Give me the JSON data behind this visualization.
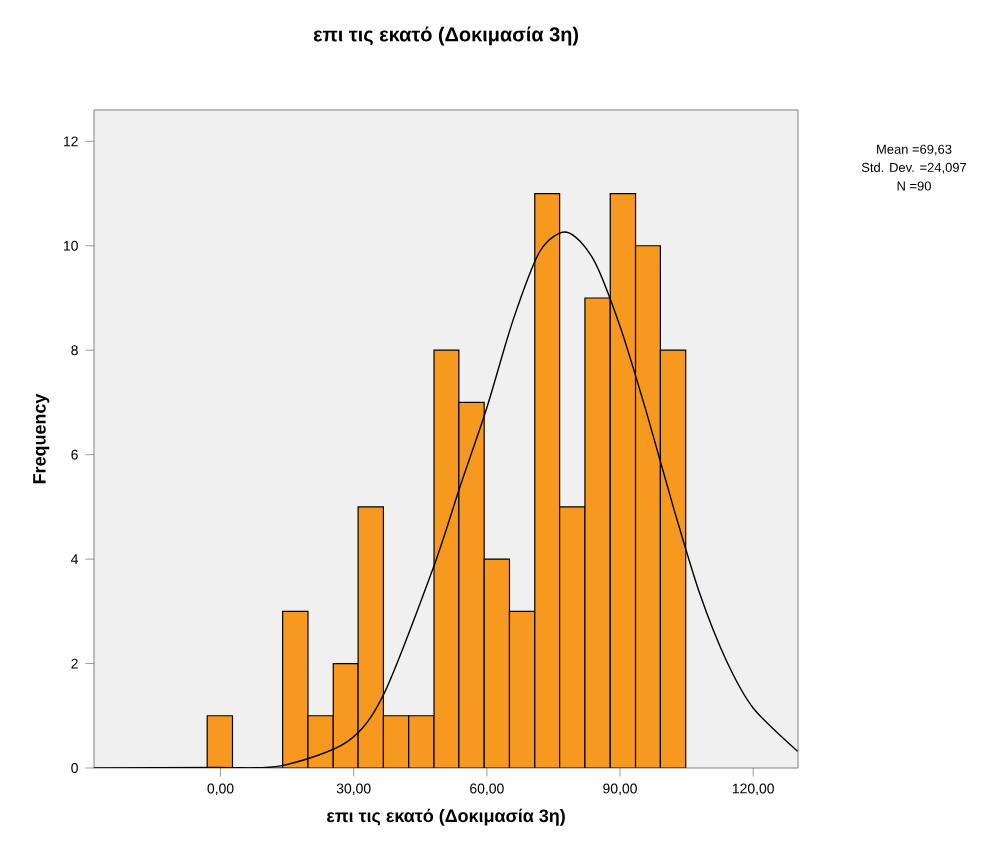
{
  "chart_data": {
    "type": "histogram",
    "title": "επι τις εκατό (Δοκιμασία 3η)",
    "xlabel": "επι τις εκατό (Δοκιμασία 3η)",
    "ylabel": "Frequency",
    "bins": [
      -3.0,
      2.7,
      8.3,
      14.0,
      19.7,
      25.4,
      31.0,
      36.7,
      42.4,
      48.1,
      53.7,
      59.4,
      65.1,
      70.8,
      76.4,
      82.1,
      87.8,
      93.5,
      99.1,
      104.8
    ],
    "values": [
      1,
      0,
      0,
      3,
      1,
      2,
      5,
      1,
      1,
      8,
      7,
      4,
      3,
      11,
      5,
      9,
      11,
      10,
      8
    ],
    "color": "#f7991f",
    "series": [
      {
        "type": "line",
        "color": "#000000",
        "x": [
          -28.5,
          -1.5,
          13.5,
          28.5,
          36.7,
          48,
          54,
          60,
          66,
          72,
          78,
          84,
          90,
          96,
          102,
          108,
          114,
          120,
          130
        ],
        "values": [
          0,
          0.01,
          0.04,
          0.5,
          1.4,
          3.85,
          5.4,
          6.9,
          8.6,
          9.9,
          10.26,
          9.74,
          8.46,
          6.8,
          5.0,
          3.33,
          2.05,
          1.15,
          0.32
        ]
      }
    ],
    "xlim": [
      -28.5,
      130.1
    ],
    "ylim": [
      0,
      12.6
    ],
    "xticks": [
      {
        "value": 0,
        "label": "0,00"
      },
      {
        "value": 30,
        "label": "30,00"
      },
      {
        "value": 60,
        "label": "60,00"
      },
      {
        "value": 90,
        "label": "90,00"
      },
      {
        "value": 120,
        "label": "120,00"
      }
    ],
    "yticks": [
      0,
      2,
      4,
      6,
      8,
      10,
      12
    ],
    "annotations": [
      "Mean =69,63",
      "Std. Dev. =24,097",
      "N =90"
    ]
  }
}
